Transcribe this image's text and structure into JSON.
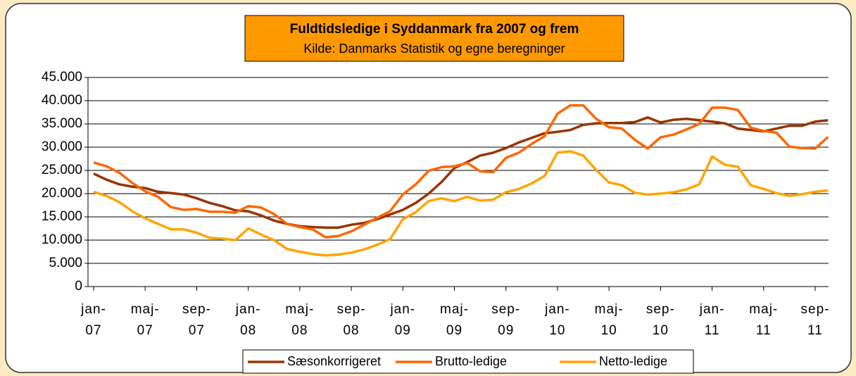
{
  "chart_data": {
    "type": "line",
    "title": "Fuldtidsledige i Syddanmark fra 2007 og frem",
    "subtitle": "Kilde: Danmarks Statistik og egne beregninger",
    "categories": [
      "jan-07",
      null,
      null,
      null,
      "maj-07",
      null,
      null,
      null,
      "sep-07",
      null,
      null,
      null,
      "jan-08",
      null,
      null,
      null,
      "maj-08",
      null,
      null,
      null,
      "sep-08",
      null,
      null,
      null,
      "jan-09",
      null,
      null,
      null,
      "maj-09",
      null,
      null,
      null,
      "sep-09",
      null,
      null,
      null,
      "jan-10",
      null,
      null,
      null,
      "maj-10",
      null,
      null,
      null,
      "sep-10",
      null,
      null,
      null,
      "jan-11",
      null,
      null,
      null,
      "maj-11",
      null,
      null,
      null,
      "sep-11",
      null
    ],
    "series": [
      {
        "name": "Sæsonkorrigeret",
        "color": "#993300",
        "values": [
          24300,
          23000,
          22000,
          21500,
          21200,
          20400,
          20100,
          19800,
          19000,
          18000,
          17300,
          16400,
          16200,
          15300,
          14200,
          13500,
          13000,
          12800,
          12700,
          12700,
          13300,
          13700,
          14500,
          15500,
          16500,
          18000,
          20000,
          22500,
          25500,
          26800,
          28200,
          28800,
          29800,
          31000,
          32000,
          33000,
          33300,
          33700,
          34800,
          35100,
          35200,
          35200,
          35400,
          36400,
          35300,
          35900,
          36100,
          35800,
          35500,
          35100,
          34000,
          33700,
          33400,
          34000,
          34600,
          34600,
          35500,
          35800
        ]
      },
      {
        "name": "Brutto-ledige",
        "color": "#ff6600",
        "values": [
          26700,
          25900,
          24500,
          22300,
          20500,
          19300,
          17100,
          16500,
          16700,
          16100,
          16100,
          15900,
          17300,
          17000,
          15600,
          13500,
          12800,
          12300,
          10600,
          10900,
          11900,
          13300,
          14800,
          16200,
          19800,
          22000,
          24900,
          25700,
          25900,
          26600,
          24800,
          24600,
          27700,
          28800,
          30700,
          32400,
          37200,
          39000,
          39000,
          36100,
          34300,
          34000,
          31600,
          29700,
          32100,
          32700,
          33800,
          35000,
          38500,
          38500,
          38000,
          34200,
          33500,
          33100,
          30100,
          29800,
          29700,
          32200
        ]
      },
      {
        "name": "Netto-ledige",
        "color": "#ffa500",
        "values": [
          20400,
          19500,
          18200,
          16200,
          14700,
          13500,
          12300,
          12300,
          11600,
          10500,
          10300,
          10000,
          12500,
          11200,
          10000,
          8100,
          7500,
          7000,
          6700,
          6900,
          7300,
          8000,
          9000,
          10200,
          14500,
          16000,
          18400,
          19000,
          18400,
          19300,
          18500,
          18700,
          20300,
          21000,
          22200,
          23800,
          28800,
          29100,
          28200,
          25100,
          22400,
          21800,
          20200,
          19800,
          20000,
          20300,
          20900,
          22000,
          28000,
          26200,
          25800,
          21800,
          21000,
          20100,
          19500,
          19900,
          20400,
          20700
        ]
      }
    ],
    "ylim": [
      0,
      45000
    ],
    "yticks": [
      0,
      {
        "value": 5000,
        "label": "5.000"
      },
      {
        "value": 10000,
        "label": "10.000"
      },
      {
        "value": 15000,
        "label": "15.000"
      },
      {
        "value": 20000,
        "label": "20.000"
      },
      {
        "value": 25000,
        "label": "25.000"
      },
      {
        "value": 30000,
        "label": "30.000"
      },
      {
        "value": 35000,
        "label": "35.000"
      },
      {
        "value": 40000,
        "label": "40.000"
      },
      {
        "value": 45000,
        "label": "45.000"
      }
    ],
    "grid": true,
    "legend": "bottom"
  }
}
